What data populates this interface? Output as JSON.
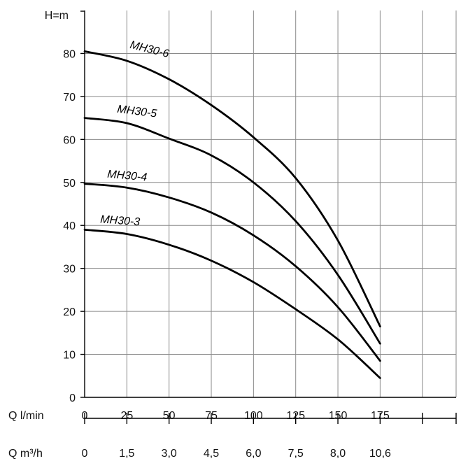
{
  "chart_data": {
    "type": "line",
    "ylabel": "H=m",
    "xlabel": "Q l/min",
    "xlabel2": "Q m³/h",
    "ylim": [
      0,
      90
    ],
    "xlim": [
      0,
      220
    ],
    "grid": true,
    "y_ticks": [
      0,
      10,
      20,
      30,
      40,
      50,
      60,
      70,
      80
    ],
    "y_tick_labels": [
      "0",
      "10",
      "20",
      "30",
      "40",
      "50",
      "60",
      "70",
      "80"
    ],
    "x_ticks": [
      0,
      25,
      50,
      75,
      100,
      125,
      150,
      175
    ],
    "x_tick_labels": [
      "0",
      "25",
      "50",
      "75",
      "100",
      "125",
      "150",
      "175"
    ],
    "x2_ticks": [
      0,
      25,
      50,
      75,
      100,
      125,
      150,
      175
    ],
    "x2_tick_labels": [
      "0",
      "1,5",
      "3,0",
      "4,5",
      "6,0",
      "7,5",
      "8,0",
      "10,6"
    ],
    "series": [
      {
        "name": "MH30-6",
        "x": [
          0,
          25,
          50,
          75,
          100,
          125,
          150,
          175
        ],
        "y": [
          80.5,
          78.3,
          74.0,
          68.0,
          60.5,
          51.0,
          36.5,
          16.5
        ]
      },
      {
        "name": "MH30-5",
        "x": [
          0,
          25,
          50,
          75,
          100,
          125,
          150,
          175
        ],
        "y": [
          65.0,
          63.8,
          60.2,
          56.3,
          50.0,
          41.0,
          28.5,
          12.5
        ]
      },
      {
        "name": "MH30-4",
        "x": [
          0,
          25,
          50,
          75,
          100,
          125,
          150,
          175
        ],
        "y": [
          49.7,
          48.8,
          46.5,
          43.0,
          37.7,
          30.5,
          21.0,
          8.5
        ]
      },
      {
        "name": "MH30-3",
        "x": [
          0,
          25,
          50,
          75,
          100,
          125,
          150,
          175
        ],
        "y": [
          39.0,
          38.0,
          35.5,
          31.8,
          26.8,
          20.5,
          13.5,
          4.5
        ]
      }
    ]
  }
}
